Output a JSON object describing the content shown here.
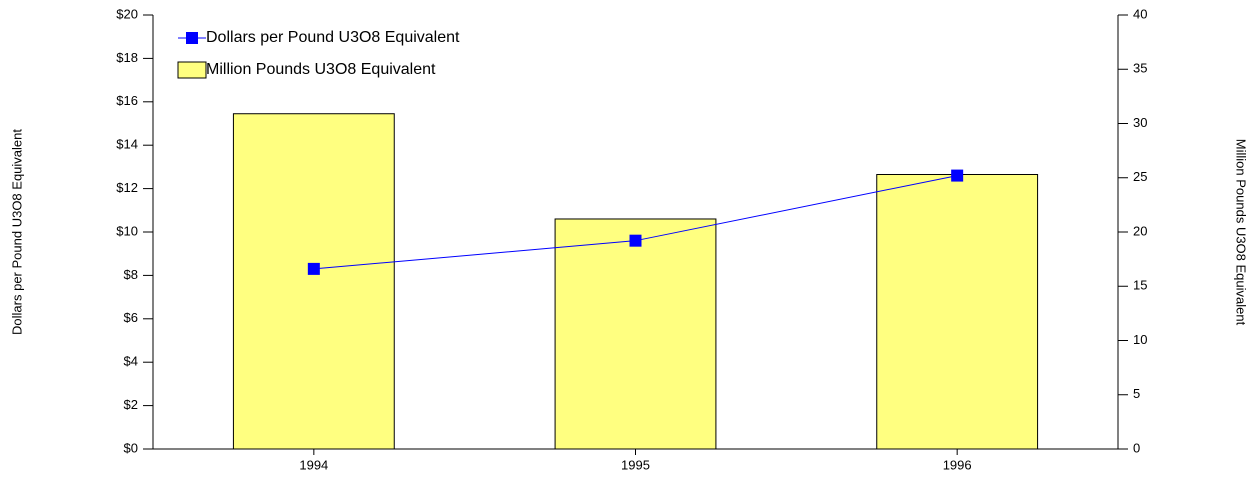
{
  "chart_data": {
    "type": "bar",
    "ylabel": "Dollars per Pound U3O8 Equivalent",
    "y2label": "Million Pounds U3O8 Equivalent",
    "categories": [
      "1994",
      "1995",
      "1996"
    ],
    "series": [
      {
        "name": "Dollars per Pound U3O8 Equivalent",
        "type": "line",
        "color": "#0000ff",
        "values": [
          8.3,
          9.6,
          12.6
        ]
      },
      {
        "name": "Million Pounds U3O8 Equivalent",
        "type": "bar",
        "axis": "y2",
        "color": "#ffff80",
        "values": [
          30.9,
          21.2,
          25.3
        ]
      }
    ],
    "ylim": [
      0,
      20
    ],
    "yticks": [
      {
        "value": 0,
        "label": "$0"
      },
      {
        "value": 2,
        "label": "$2"
      },
      {
        "value": 4,
        "label": "$4"
      },
      {
        "value": 6,
        "label": "$6"
      },
      {
        "value": 8,
        "label": "$8"
      },
      {
        "value": 10,
        "label": "$10"
      },
      {
        "value": 12,
        "label": "$12"
      },
      {
        "value": 14,
        "label": "$14"
      },
      {
        "value": 16,
        "label": "$16"
      },
      {
        "value": 18,
        "label": "$18"
      },
      {
        "value": 20,
        "label": "$20"
      }
    ],
    "y2lim": [
      0,
      40
    ],
    "y2ticks": [
      0,
      5,
      10,
      15,
      20,
      25,
      30,
      35,
      40
    ],
    "legend": "upper left"
  }
}
